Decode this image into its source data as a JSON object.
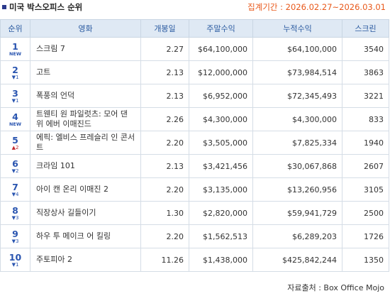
{
  "header": {
    "title": "미국 박스오피스 순위",
    "period": "집계기간 : 2026.02.27~2026.03.01"
  },
  "table": {
    "columns": [
      "순위",
      "영화",
      "개봉일",
      "주말수익",
      "누적수익",
      "스크린"
    ],
    "rows": [
      {
        "rank": "1",
        "change": "NEW",
        "dir": "new",
        "title": "스크림 7",
        "open": "2.27",
        "weekend": "$64,100,000",
        "total": "$64,100,000",
        "screens": "3540"
      },
      {
        "rank": "2",
        "change": "▼1",
        "dir": "down",
        "title": "고트",
        "open": "2.13",
        "weekend": "$12,000,000",
        "total": "$73,984,514",
        "screens": "3863"
      },
      {
        "rank": "3",
        "change": "▼1",
        "dir": "down",
        "title": "폭풍의 언덕",
        "open": "2.13",
        "weekend": "$6,952,000",
        "total": "$72,345,493",
        "screens": "3221"
      },
      {
        "rank": "4",
        "change": "NEW",
        "dir": "new",
        "title": "트웬티 원 파일럿츠: 모어 댄 위 에버 이매진드",
        "open": "2.26",
        "weekend": "$4,300,000",
        "total": "$4,300,000",
        "screens": "833"
      },
      {
        "rank": "5",
        "change": "▲2",
        "dir": "up",
        "title": "에픽: 엘비스 프레슬리 인 콘서트",
        "open": "2.20",
        "weekend": "$3,505,000",
        "total": "$7,825,334",
        "screens": "1940"
      },
      {
        "rank": "6",
        "change": "▼2",
        "dir": "down",
        "title": "크라임 101",
        "open": "2.13",
        "weekend": "$3,421,456",
        "total": "$30,067,868",
        "screens": "2607"
      },
      {
        "rank": "7",
        "change": "▼4",
        "dir": "down",
        "title": "아이 캔 온리 이매진 2",
        "open": "2.20",
        "weekend": "$3,135,000",
        "total": "$13,260,956",
        "screens": "3105"
      },
      {
        "rank": "8",
        "change": "▼3",
        "dir": "down",
        "title": "직장상사 길들이기",
        "open": "1.30",
        "weekend": "$2,820,000",
        "total": "$59,941,729",
        "screens": "2500"
      },
      {
        "rank": "9",
        "change": "▼3",
        "dir": "down",
        "title": "하우 투 메이크 어 킬링",
        "open": "2.20",
        "weekend": "$1,562,513",
        "total": "$6,289,203",
        "screens": "1726"
      },
      {
        "rank": "10",
        "change": "▼1",
        "dir": "down",
        "title": "주토피아 2",
        "open": "11.26",
        "weekend": "$1,438,000",
        "total": "$425,842,244",
        "screens": "1350"
      }
    ]
  },
  "footer": {
    "source": "자료출처 : Box Office Mojo"
  },
  "colors": {
    "header_bg": "#dfe9f4",
    "rank_blue": "#2a55b0",
    "period_orange": "#e8581a",
    "up_red": "#c0282d"
  }
}
